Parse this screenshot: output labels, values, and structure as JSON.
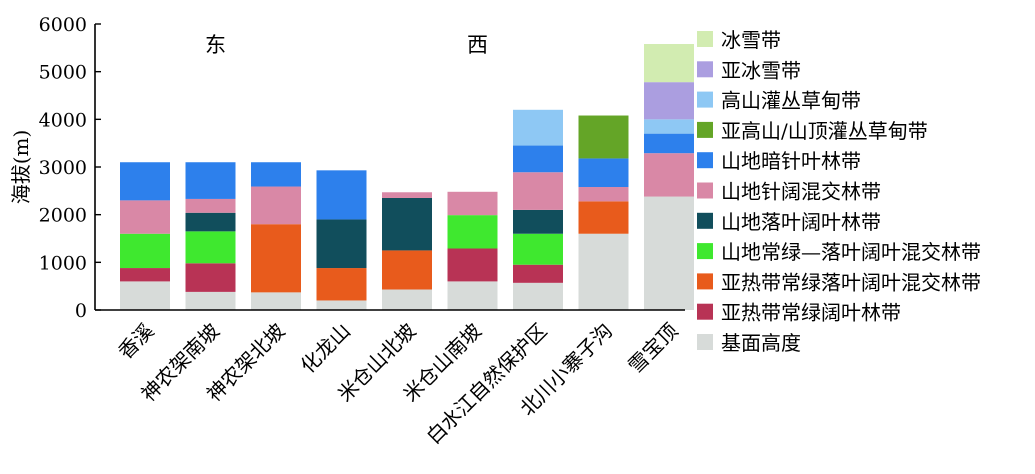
{
  "chart_data": {
    "type": "bar",
    "stacked": true,
    "ylabel": "海拔(m)",
    "ylim": [
      0,
      6000
    ],
    "yticks": [
      0,
      1000,
      2000,
      3000,
      4000,
      5000,
      6000
    ],
    "grid": false,
    "legend_position": "right",
    "categories": [
      "香溪",
      "神农架南坡",
      "神农架北坡",
      "化龙山",
      "米仓山北坡",
      "米仓山南坡",
      "白水江自然保护区",
      "北川小寨子沟",
      "雪宝顶"
    ],
    "region_labels": [
      {
        "text": "东",
        "category_index": 1
      },
      {
        "text": "西",
        "category_index": 5
      }
    ],
    "series": [
      {
        "name": "基面高度",
        "color": "#d7dbd9",
        "values": [
          600,
          380,
          370,
          200,
          430,
          600,
          570,
          1600,
          2380
        ]
      },
      {
        "name": "亚热带常绿阔叶林带",
        "color": "#b83355",
        "values": [
          280,
          600,
          0,
          0,
          0,
          690,
          380,
          0,
          0
        ]
      },
      {
        "name": "亚热带常绿落叶阔叶混交林带",
        "color": "#e85b1c",
        "values": [
          0,
          0,
          1430,
          680,
          820,
          0,
          0,
          680,
          0
        ]
      },
      {
        "name": "山地常绿—落叶阔叶混交林带",
        "color": "#3fe82f",
        "values": [
          720,
          670,
          0,
          0,
          0,
          700,
          650,
          0,
          0
        ]
      },
      {
        "name": "山地落叶阔叶林带",
        "color": "#114e5c",
        "values": [
          0,
          390,
          0,
          1020,
          1100,
          0,
          500,
          0,
          0
        ]
      },
      {
        "name": "山地针阔混交林带",
        "color": "#d988a6",
        "values": [
          700,
          290,
          790,
          0,
          120,
          490,
          790,
          300,
          910
        ]
      },
      {
        "name": "山地暗针叶林带",
        "color": "#2d80ec",
        "values": [
          800,
          770,
          510,
          1030,
          0,
          0,
          560,
          600,
          410
        ]
      },
      {
        "name": "亚高山/山顶灌丛草甸带",
        "color": "#64a527",
        "values": [
          0,
          0,
          0,
          0,
          0,
          0,
          0,
          900,
          0
        ]
      },
      {
        "name": "高山灌丛草甸带",
        "color": "#8ec8f4",
        "values": [
          0,
          0,
          0,
          0,
          0,
          0,
          750,
          0,
          300
        ]
      },
      {
        "name": "亚冰雪带",
        "color": "#ab9ee0",
        "values": [
          0,
          0,
          0,
          0,
          0,
          0,
          0,
          0,
          780
        ]
      },
      {
        "name": "冰雪带",
        "color": "#d2ecb1",
        "values": [
          0,
          0,
          0,
          0,
          0,
          0,
          0,
          0,
          800
        ]
      }
    ]
  }
}
